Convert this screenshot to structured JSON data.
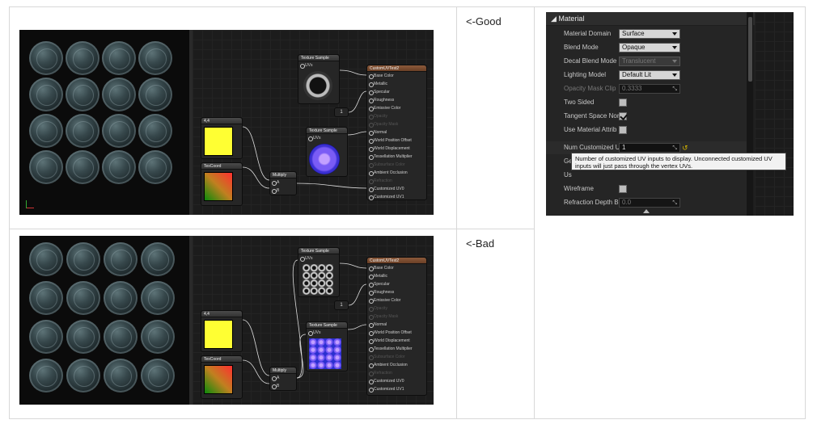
{
  "labels": {
    "good": "<-Good",
    "bad": "<-Bad"
  },
  "nodes": {
    "texture_sample": {
      "title": "Texture Sample",
      "uv_pin": "UVs"
    },
    "result": {
      "title": "CustomUVTest2",
      "pins": [
        "Base Color",
        "Metallic",
        "Specular",
        "Roughness",
        "Emissive Color",
        "Opacity",
        "Opacity Mask",
        "Normal",
        "World Position Offset",
        "World Displacement",
        "Tessellation Multiplier",
        "Subsurface Color",
        "Ambient Occlusion",
        "Refraction",
        "Customized UV0",
        "Customized UV1"
      ]
    },
    "constant": {
      "title": "4,4"
    },
    "texcoord": {
      "title": "TexCoord"
    },
    "multiply": {
      "title": "Multiply",
      "pin_a": "A",
      "pin_b": "B"
    },
    "const_one": {
      "value": "1"
    }
  },
  "details": {
    "section": "Material",
    "rows": [
      {
        "label": "Material Domain",
        "value": "Surface"
      },
      {
        "label": "Blend Mode",
        "value": "Opaque"
      },
      {
        "label": "Decal Blend Mode",
        "value": "Translucent"
      },
      {
        "label": "Lighting Model",
        "value": "Default Lit"
      },
      {
        "label": "Opacity Mask Clip",
        "value": "0.3333"
      },
      {
        "label": "Two Sided",
        "value": ""
      },
      {
        "label": "Tangent Space Nor",
        "value": ""
      },
      {
        "label": "Use Material Attrib",
        "value": ""
      },
      {
        "label": "Num Customized U",
        "value": "1"
      },
      {
        "label": "Ge",
        "value": ""
      },
      {
        "label": "Us",
        "value": ""
      },
      {
        "label": "Wireframe",
        "value": ""
      },
      {
        "label": "Refraction Depth B",
        "value": "0.0"
      }
    ],
    "tooltip": "Number of customized UV inputs to display.  Unconnected customized UV inputs will just pass through the vertex UVs."
  },
  "colors": {
    "constant": "#ffff33",
    "result_header": "#8c5a3a",
    "accent_reset": "#d4b400"
  }
}
